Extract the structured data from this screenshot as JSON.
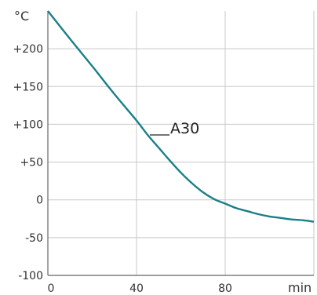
{
  "chart_data": {
    "type": "line",
    "title": "",
    "xlabel": "min",
    "ylabel": "°C",
    "xlim": [
      0,
      120
    ],
    "ylim": [
      -100,
      250
    ],
    "grid": true,
    "x_ticks": [
      0,
      40,
      80
    ],
    "x_tick_labels": [
      "0",
      "40",
      "80"
    ],
    "y_ticks": [
      -100,
      -50,
      0,
      50,
      100,
      150,
      200
    ],
    "y_tick_labels": [
      "-100",
      "-50",
      "0",
      "+50",
      "+100",
      "+150",
      "+200"
    ],
    "series": [
      {
        "color": "#1a7f87",
        "x": [
          0,
          10,
          20,
          30,
          40,
          45,
          50,
          55,
          60,
          65,
          70,
          75,
          80,
          85,
          90,
          95,
          100,
          105,
          110,
          115,
          120
        ],
        "y": [
          250,
          213,
          177,
          140,
          105,
          86,
          69,
          52,
          36,
          22,
          10,
          1,
          -5,
          -11,
          -15,
          -19,
          -22,
          -24,
          -26,
          -27,
          -29
        ]
      }
    ],
    "annotations": [
      {
        "text": "A30",
        "leader": true
      }
    ]
  }
}
